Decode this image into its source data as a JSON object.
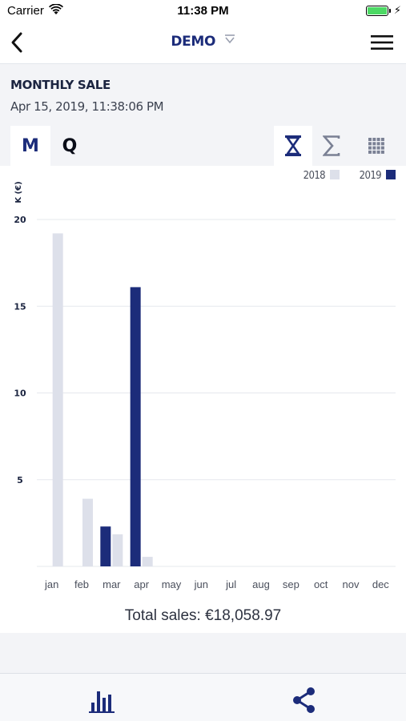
{
  "status_bar": {
    "carrier": "Carrier",
    "time": "11:38 PM",
    "battery_level": 1.0,
    "icons": [
      "wifi-icon",
      "battery-icon",
      "charging-bolt-icon"
    ]
  },
  "nav": {
    "title": "DEMO",
    "icons": [
      "chevron-left-icon",
      "caret-down-icon",
      "hamburger-menu-icon"
    ]
  },
  "header": {
    "title": "MONTHLY SALE",
    "date": "Apr 15, 2019, 11:38:06 PM"
  },
  "tabs": [
    {
      "label": "M",
      "selected": true
    },
    {
      "label": "Q",
      "selected": false
    }
  ],
  "modes": [
    {
      "icon": "hourglass-icon",
      "selected": true
    },
    {
      "icon": "sigma-icon",
      "selected": false
    },
    {
      "icon": "grid-icon",
      "selected": false
    }
  ],
  "colors": {
    "accent": "#1c2c7a",
    "series_2018": "#dde0ea",
    "series_2019": "#1c2c7a",
    "grid": "#e6e8ed"
  },
  "chart_data": {
    "type": "bar",
    "ylabel": "K (€)",
    "xlabel": "",
    "ylim": [
      0,
      20
    ],
    "yticks": [
      5,
      10,
      15,
      20
    ],
    "grid": true,
    "legend_position": "top-right",
    "categories": [
      "jan",
      "feb",
      "mar",
      "apr",
      "may",
      "jun",
      "jul",
      "aug",
      "sep",
      "oct",
      "nov",
      "dec"
    ],
    "series": [
      {
        "name": "2018",
        "color": "#dde0ea",
        "values": [
          19.2,
          3.9,
          1.85,
          0.55,
          0,
          0,
          0,
          0,
          0,
          0,
          0,
          0
        ]
      },
      {
        "name": "2019",
        "color": "#1c2c7a",
        "values": [
          0,
          0,
          2.3,
          16.1,
          0,
          0,
          0,
          0,
          0,
          0,
          0,
          0
        ]
      }
    ]
  },
  "total": {
    "text": "Total sales: €18,058.97"
  },
  "bottom_bar": {
    "icons": [
      "bar-chart-icon",
      "share-icon"
    ]
  }
}
